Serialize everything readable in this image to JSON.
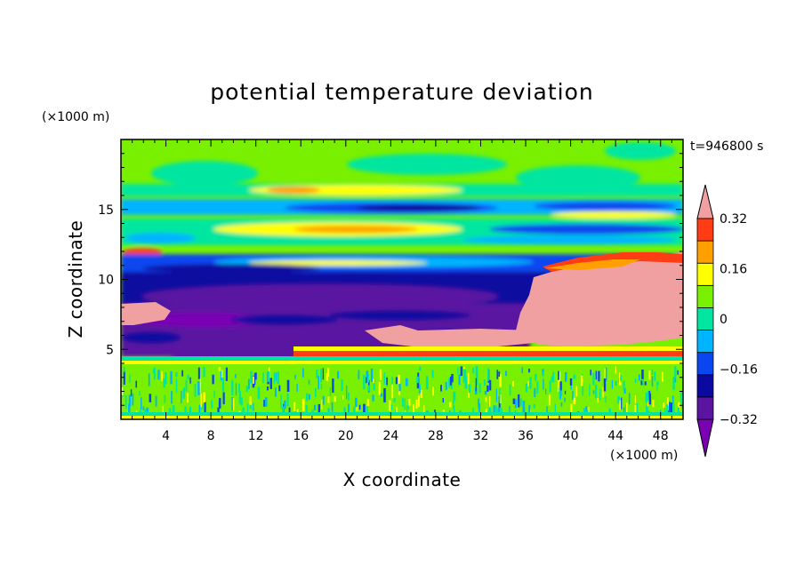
{
  "chart_data": {
    "type": "heatmap",
    "title": "potential temperature deviation",
    "xlabel": "X coordinate",
    "ylabel": "Z coordinate",
    "x_unit": "(×1000 m)",
    "y_unit": "(×1000 m)",
    "time_label": "t=946800 s",
    "xlim": [
      0,
      50
    ],
    "ylim": [
      0,
      20
    ],
    "x_ticks": [
      4,
      8,
      12,
      16,
      20,
      24,
      28,
      32,
      36,
      40,
      44,
      48
    ],
    "y_ticks": [
      5,
      10,
      15
    ],
    "colorbar": {
      "levels": [
        -0.4,
        -0.32,
        -0.24,
        -0.16,
        -0.08,
        0,
        0.08,
        0.16,
        0.24,
        0.32,
        0.4
      ],
      "tick_labels": [
        "0.32",
        "0.16",
        "0",
        "−0.16",
        "−0.32"
      ],
      "tick_values": [
        0.32,
        0.16,
        0,
        -0.16,
        -0.32
      ],
      "colors": [
        "#7a00b4",
        "#5a14a0",
        "#0a0aa0",
        "#0a46f0",
        "#00b4ff",
        "#00e6a0",
        "#78f000",
        "#ffff00",
        "#ffa000",
        "#ff3c14",
        "#f0a0a0"
      ]
    },
    "colors": {
      "plot_background": "#78f000"
    }
  }
}
